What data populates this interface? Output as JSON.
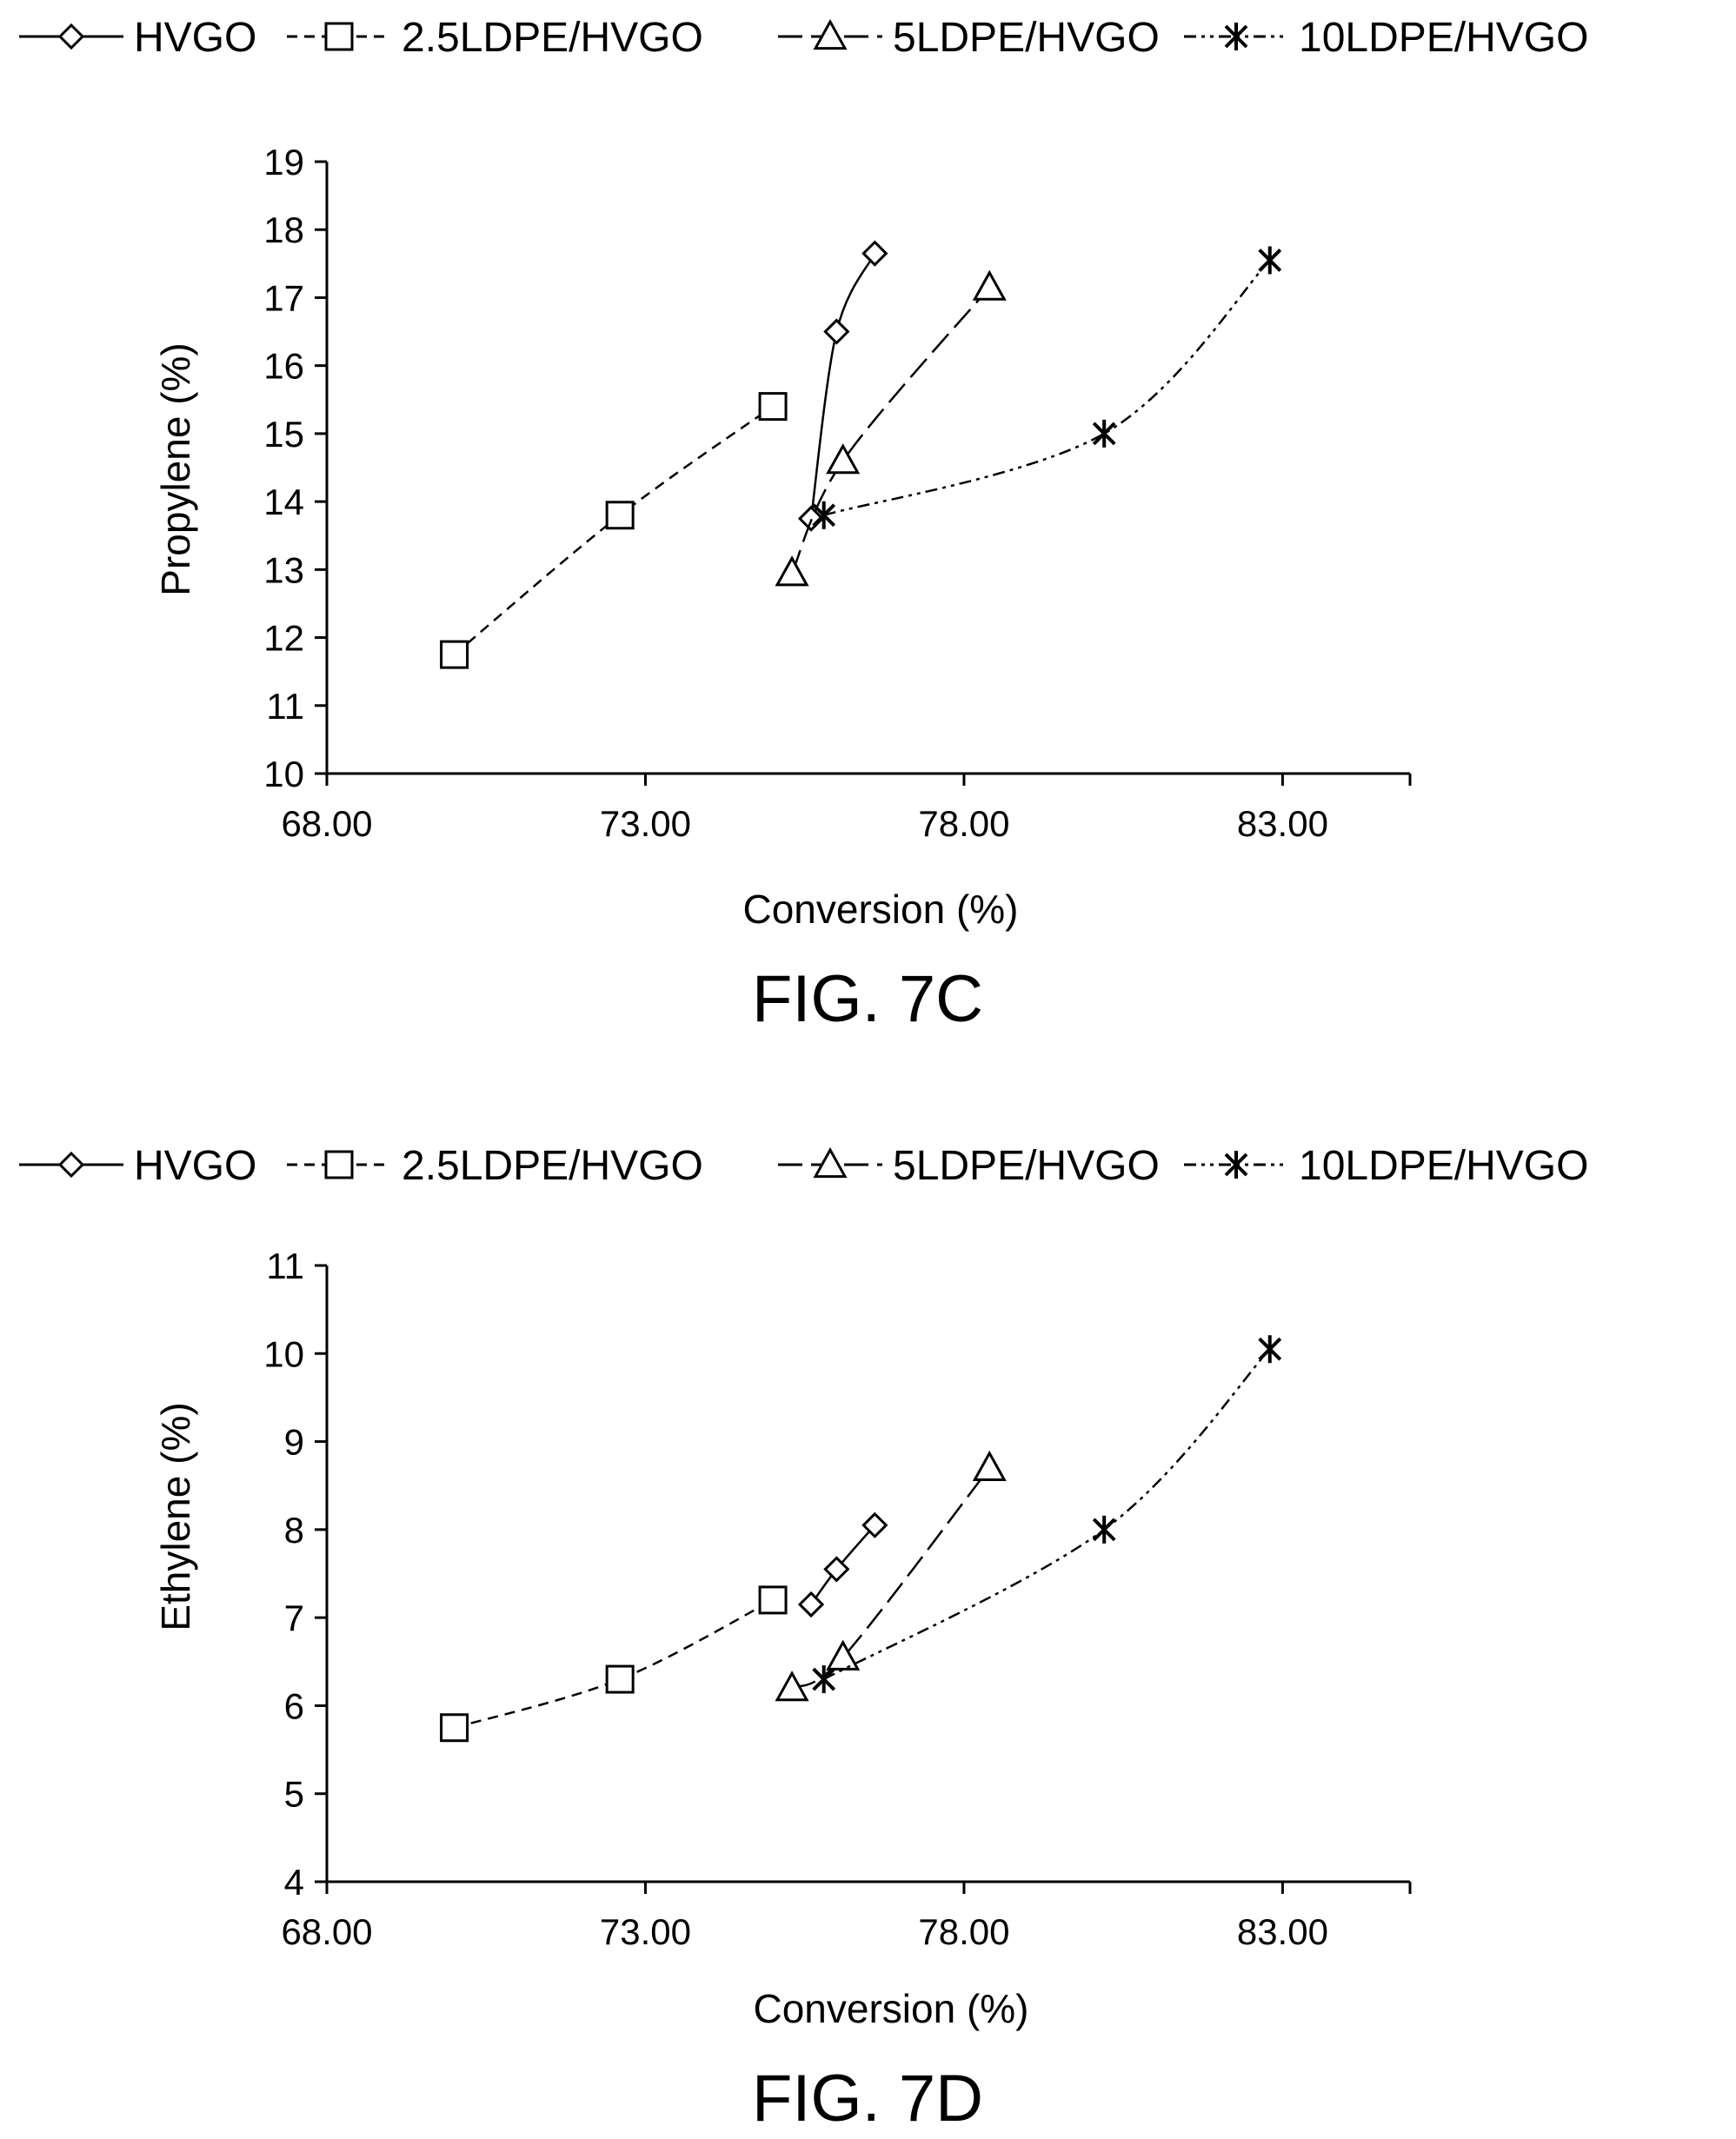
{
  "figures": [
    {
      "caption": "FIG. 7C"
    },
    {
      "caption": "FIG. 7D"
    }
  ],
  "chart_data": [
    {
      "type": "scatter",
      "title": "",
      "xlabel": "Conversion (%)",
      "ylabel": "Propylene (%)",
      "xlim": [
        68,
        85
      ],
      "ylim": [
        10,
        19
      ],
      "xticks": [
        68,
        73,
        78,
        83
      ],
      "xtick_labels": [
        "68.00",
        "73.00",
        "78.00",
        "83.00"
      ],
      "yticks": [
        10,
        11,
        12,
        13,
        14,
        15,
        16,
        17,
        18,
        19
      ],
      "ytick_labels": [
        "10",
        "11",
        "12",
        "13",
        "14",
        "15",
        "16",
        "17",
        "18",
        "19"
      ],
      "legend_position": "top",
      "series": [
        {
          "name": "HVGO",
          "marker": "diamond",
          "line": "solid",
          "x": [
            75.6,
            76.0,
            76.6
          ],
          "y": [
            13.75,
            16.5,
            17.65
          ]
        },
        {
          "name": "2.5LDPE/HVGO",
          "marker": "square",
          "line": "short-dash",
          "x": [
            70.0,
            72.6,
            75.0
          ],
          "y": [
            11.75,
            13.8,
            15.4
          ]
        },
        {
          "name": "5LDPE/HVGO",
          "marker": "triangle",
          "line": "long-dash",
          "x": [
            75.3,
            76.1,
            78.4
          ],
          "y": [
            12.95,
            14.6,
            17.15
          ]
        },
        {
          "name": "10LDPE/HVGO",
          "marker": "asterisk",
          "line": "dash-dot-dot",
          "x": [
            75.8,
            80.2,
            82.8
          ],
          "y": [
            13.8,
            15.0,
            17.55
          ]
        }
      ]
    },
    {
      "type": "scatter",
      "title": "",
      "xlabel": "Conversion (%)",
      "ylabel": "Ethylene (%)",
      "xlim": [
        68,
        85
      ],
      "ylim": [
        4,
        11
      ],
      "xticks": [
        68,
        73,
        78,
        83
      ],
      "xtick_labels": [
        "68.00",
        "73.00",
        "78.00",
        "83.00"
      ],
      "yticks": [
        4,
        5,
        6,
        7,
        8,
        9,
        10,
        11
      ],
      "ytick_labels": [
        "4",
        "5",
        "6",
        "7",
        "8",
        "9",
        "10",
        "11"
      ],
      "legend_position": "top",
      "series": [
        {
          "name": "HVGO",
          "marker": "diamond",
          "line": "solid",
          "x": [
            75.6,
            76.0,
            76.6
          ],
          "y": [
            7.15,
            7.55,
            8.05
          ]
        },
        {
          "name": "2.5LDPE/HVGO",
          "marker": "square",
          "line": "short-dash",
          "x": [
            70.0,
            72.6,
            75.0
          ],
          "y": [
            5.75,
            6.3,
            7.2
          ]
        },
        {
          "name": "5LDPE/HVGO",
          "marker": "triangle",
          "line": "long-dash",
          "x": [
            75.3,
            76.1,
            78.4
          ],
          "y": [
            6.2,
            6.55,
            8.7
          ]
        },
        {
          "name": "10LDPE/HVGO",
          "marker": "asterisk",
          "line": "dash-dot-dot",
          "x": [
            75.8,
            80.2,
            82.8
          ],
          "y": [
            6.3,
            8.0,
            10.05
          ]
        }
      ]
    }
  ]
}
